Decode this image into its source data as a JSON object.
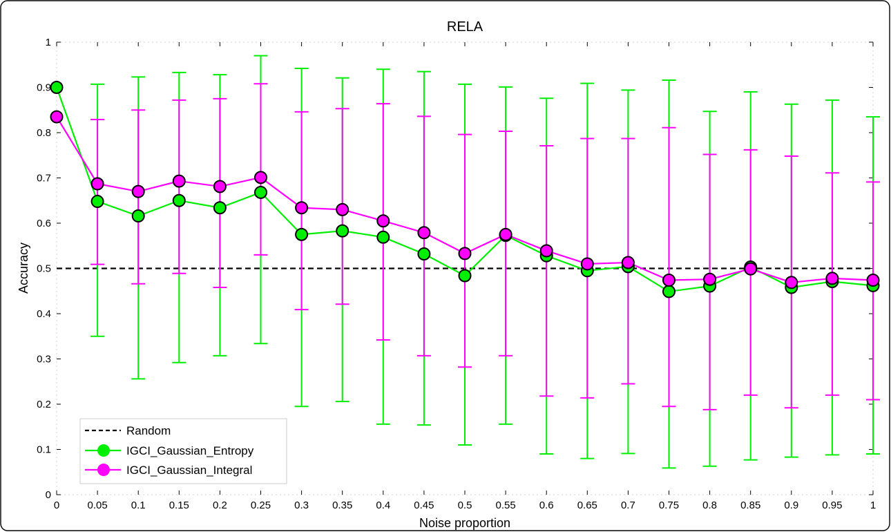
{
  "chart_data": {
    "type": "line",
    "title": "RELA",
    "xlabel": "Noise proportion",
    "ylabel": "Accuracy",
    "x": [
      0,
      0.05,
      0.1,
      0.15,
      0.2,
      0.25,
      0.3,
      0.35,
      0.4,
      0.45,
      0.5,
      0.55,
      0.6,
      0.65,
      0.7,
      0.75,
      0.8,
      0.85,
      0.9,
      0.95,
      1
    ],
    "x_tick_labels": [
      "0",
      "0.05",
      "0.1",
      "0.15",
      "0.2",
      "0.25",
      "0.3",
      "0.35",
      "0.4",
      "0.45",
      "0.5",
      "0.55",
      "0.6",
      "0.65",
      "0.7",
      "0.75",
      "0.8",
      "0.85",
      "0.9",
      "0.95",
      "1"
    ],
    "y_ticks": [
      0,
      0.1,
      0.2,
      0.3,
      0.4,
      0.5,
      0.6,
      0.7,
      0.8,
      0.9,
      1
    ],
    "y_tick_labels": [
      "0",
      "0.1",
      "0.2",
      "0.3",
      "0.4",
      "0.5",
      "0.6",
      "0.7",
      "0.8",
      "0.9",
      "1"
    ],
    "xlim": [
      0,
      1
    ],
    "ylim": [
      0,
      1
    ],
    "grid": false,
    "legend_position": "bottom-left",
    "reference_line": {
      "name": "Random",
      "value": 0.5,
      "color": "#000000",
      "style": "dashed"
    },
    "series": [
      {
        "name": "IGCI_Gaussian_Entropy",
        "color": "#00ee00",
        "values": [
          0.9,
          0.648,
          0.616,
          0.65,
          0.634,
          0.668,
          0.575,
          0.583,
          0.569,
          0.532,
          0.484,
          0.573,
          0.528,
          0.495,
          0.504,
          0.449,
          0.461,
          0.503,
          0.458,
          0.471,
          0.462
        ],
        "err_low": [
          0.9,
          0.35,
          0.256,
          0.292,
          0.307,
          0.334,
          0.195,
          0.206,
          0.156,
          0.154,
          0.11,
          0.156,
          0.09,
          0.08,
          0.091,
          0.059,
          0.063,
          0.077,
          0.083,
          0.088,
          0.09
        ],
        "err_high": [
          0.9,
          0.907,
          0.923,
          0.933,
          0.928,
          0.97,
          0.942,
          0.921,
          0.94,
          0.935,
          0.907,
          0.901,
          0.876,
          0.909,
          0.894,
          0.916,
          0.847,
          0.89,
          0.863,
          0.872,
          0.835
        ]
      },
      {
        "name": "IGCI_Gaussian_Integral",
        "color": "#ff00ff",
        "values": [
          0.835,
          0.687,
          0.67,
          0.693,
          0.681,
          0.701,
          0.634,
          0.63,
          0.605,
          0.579,
          0.533,
          0.575,
          0.539,
          0.51,
          0.513,
          0.474,
          0.476,
          0.499,
          0.469,
          0.478,
          0.474
        ],
        "err_low": [
          0.835,
          0.509,
          0.466,
          0.489,
          0.458,
          0.53,
          0.409,
          0.421,
          0.342,
          0.307,
          0.282,
          0.307,
          0.218,
          0.214,
          0.245,
          0.195,
          0.188,
          0.22,
          0.192,
          0.22,
          0.21
        ],
        "err_high": [
          0.835,
          0.829,
          0.85,
          0.872,
          0.875,
          0.908,
          0.846,
          0.853,
          0.864,
          0.836,
          0.796,
          0.803,
          0.771,
          0.787,
          0.787,
          0.811,
          0.752,
          0.762,
          0.748,
          0.711,
          0.691
        ]
      }
    ]
  }
}
